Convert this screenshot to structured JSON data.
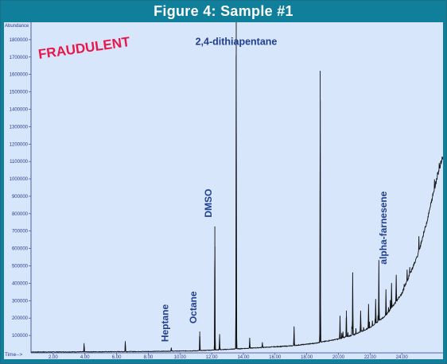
{
  "figure": {
    "title": "Figure 4: Sample #1"
  },
  "stamp": {
    "text": "FRAUDULENT",
    "color": "#e8174a"
  },
  "colors": {
    "frame": "#0f7f9c",
    "plot_bg": "#d8e6fb",
    "trace": "#111111",
    "axis_text": "#2a3a8c",
    "peak_label": "#1f3f8f"
  },
  "chart_data": {
    "type": "line",
    "title": "",
    "xlabel": "Time-->",
    "ylabel": "Abundance",
    "xlim": [
      0.6,
      26.6
    ],
    "ylim": [
      0,
      1900000
    ],
    "x_ticks": [
      2,
      4,
      6,
      8,
      10,
      12,
      14,
      16,
      18,
      20,
      22,
      24
    ],
    "x_tick_labels": [
      "2.00",
      "4.00",
      "6.00",
      "8.00",
      "10.00",
      "12.00",
      "14.00",
      "16.00",
      "18.00",
      "20.00",
      "22.00",
      "24.00"
    ],
    "y_ticks": [
      100000,
      200000,
      300000,
      400000,
      500000,
      600000,
      700000,
      800000,
      900000,
      1000000,
      1100000,
      1200000,
      1300000,
      1400000,
      1500000,
      1600000,
      1700000,
      1800000
    ],
    "y_tick_labels": [
      "100000",
      "200000",
      "300000",
      "400000",
      "500000",
      "600000",
      "700000",
      "800000",
      "900000",
      "1000000",
      "1100000",
      "1200000",
      "1300000",
      "1400000",
      "1500000",
      "1600000",
      "1700000",
      "1800000"
    ],
    "baseline": [
      [
        0.6,
        5000
      ],
      [
        4.0,
        6000
      ],
      [
        8.0,
        8000
      ],
      [
        11.0,
        12000
      ],
      [
        13.0,
        20000
      ],
      [
        15.0,
        30000
      ],
      [
        17.0,
        40000
      ],
      [
        18.5,
        55000
      ],
      [
        20.0,
        80000
      ],
      [
        21.0,
        105000
      ],
      [
        22.0,
        145000
      ],
      [
        23.0,
        215000
      ],
      [
        24.0,
        340000
      ],
      [
        25.0,
        560000
      ],
      [
        25.6,
        760000
      ],
      [
        26.0,
        920000
      ],
      [
        26.3,
        1040000
      ],
      [
        26.6,
        1130000
      ]
    ],
    "peaks": [
      {
        "x": 3.95,
        "height": 50000
      },
      {
        "x": 6.55,
        "height": 60000
      },
      {
        "x": 9.45,
        "height": 20000
      },
      {
        "x": 11.25,
        "height": 110000
      },
      {
        "x": 12.2,
        "height": 710000
      },
      {
        "x": 12.5,
        "height": 90000
      },
      {
        "x": 13.55,
        "height": 1890000
      },
      {
        "x": 14.4,
        "height": 60000
      },
      {
        "x": 15.2,
        "height": 30000
      },
      {
        "x": 17.2,
        "height": 110000
      },
      {
        "x": 18.85,
        "height": 1560000
      },
      {
        "x": 20.1,
        "height": 130000
      },
      {
        "x": 20.5,
        "height": 150000
      },
      {
        "x": 20.9,
        "height": 360000
      },
      {
        "x": 21.4,
        "height": 120000
      },
      {
        "x": 21.9,
        "height": 140000
      },
      {
        "x": 22.35,
        "height": 140000
      },
      {
        "x": 22.55,
        "height": 350000
      },
      {
        "x": 23.0,
        "height": 150000
      },
      {
        "x": 23.35,
        "height": 140000
      },
      {
        "x": 23.65,
        "height": 100000
      }
    ],
    "annotations": [
      {
        "text": "2,4-dithiapentane",
        "x": 13.55,
        "y": 1770000,
        "rotate": false
      },
      {
        "text": "Heptane",
        "x": 9.45,
        "y": 45000,
        "rotate": true
      },
      {
        "text": "Octane",
        "x": 11.25,
        "y": 150000,
        "rotate": true
      },
      {
        "text": "DMSO",
        "x": 12.2,
        "y": 760000,
        "rotate": true
      },
      {
        "text": "alpha-farnesene",
        "x": 23.25,
        "y": 490000,
        "rotate": true
      }
    ]
  }
}
